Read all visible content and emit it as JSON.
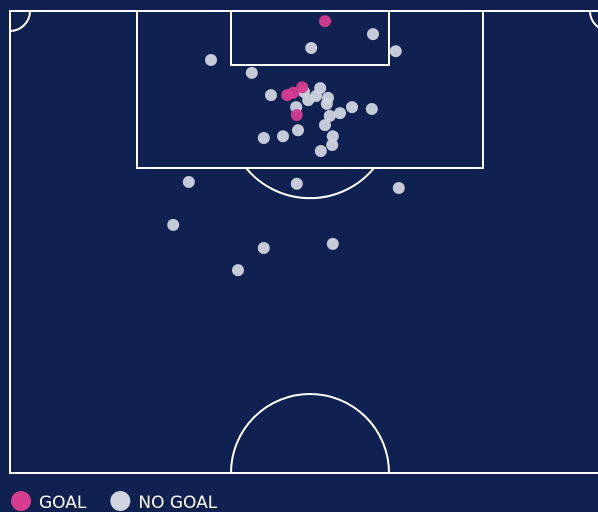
{
  "chart_data": {
    "type": "scatter",
    "xlim": [
      0,
      100
    ],
    "ylim": [
      0,
      100
    ],
    "legend": "bottom-left",
    "series": [
      {
        "name": "GOAL",
        "color": "#d63c8f",
        "x": [
          52.5,
          46.2,
          47.2,
          48.7,
          47.8
        ],
        "values": [
          2.2,
          18.2,
          17.7,
          16.5,
          22.5
        ]
      },
      {
        "name": "NO GOAL",
        "color": "#d0d4e0",
        "x": [
          60.5,
          50.2,
          64.3,
          33.5,
          40.3,
          43.5,
          51.7,
          49.7,
          53.0,
          51.0,
          52.8,
          47.7,
          55.0,
          57.0,
          60.3,
          53.3,
          52.5,
          48.0,
          45.5,
          42.3,
          53.8,
          53.7,
          51.8,
          29.8,
          47.8,
          64.8,
          27.2,
          42.3,
          53.8,
          38.0,
          49.0
        ],
        "values": [
          5.0,
          8.0,
          8.7,
          10.6,
          13.4,
          18.2,
          16.7,
          19.3,
          18.8,
          18.4,
          20.1,
          20.8,
          22.1,
          20.8,
          21.2,
          22.7,
          24.7,
          25.8,
          27.1,
          27.5,
          27.1,
          29.0,
          30.3,
          37.0,
          37.4,
          38.3,
          46.3,
          51.3,
          50.4,
          56.1,
          17.5
        ]
      }
    ]
  }
}
